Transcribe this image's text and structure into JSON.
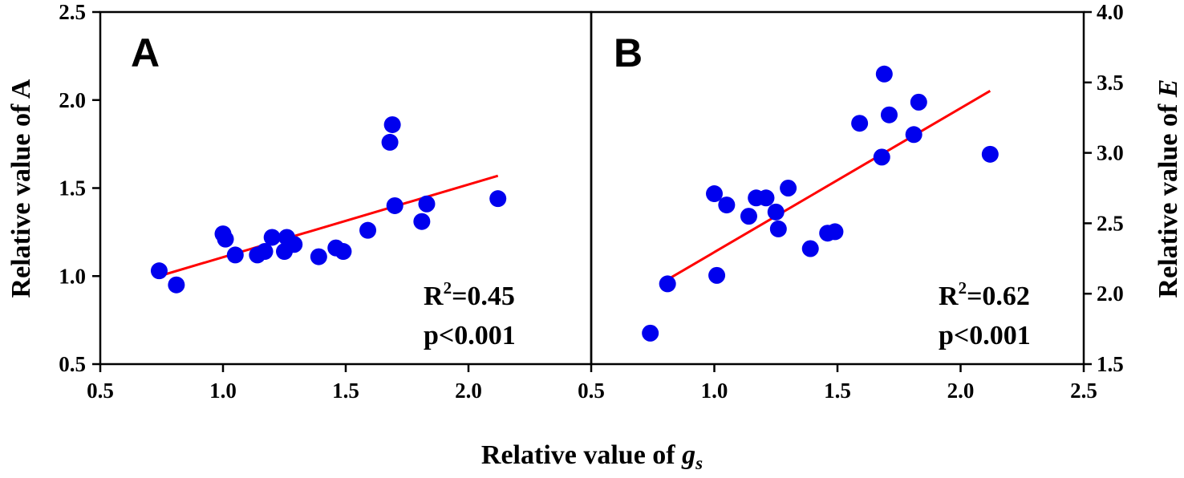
{
  "chart_data": [
    {
      "type": "scatter",
      "panel_label": "A",
      "xlim": [
        0.5,
        2.5
      ],
      "ylim": [
        0.5,
        2.5
      ],
      "x_ticks": [
        "0.5",
        "1.0",
        "1.5",
        "2.0"
      ],
      "y_ticks": [
        "0.5",
        "1.0",
        "1.5",
        "2.0",
        "2.5"
      ],
      "ylabel": "Relative value of A",
      "points": [
        [
          0.74,
          1.03
        ],
        [
          0.81,
          0.95
        ],
        [
          1.0,
          1.24
        ],
        [
          1.01,
          1.21
        ],
        [
          1.05,
          1.12
        ],
        [
          1.14,
          1.12
        ],
        [
          1.17,
          1.14
        ],
        [
          1.2,
          1.22
        ],
        [
          1.25,
          1.14
        ],
        [
          1.26,
          1.22
        ],
        [
          1.29,
          1.18
        ],
        [
          1.39,
          1.11
        ],
        [
          1.46,
          1.16
        ],
        [
          1.49,
          1.14
        ],
        [
          1.59,
          1.26
        ],
        [
          1.68,
          1.76
        ],
        [
          1.69,
          1.86
        ],
        [
          1.7,
          1.4
        ],
        [
          1.81,
          1.31
        ],
        [
          1.83,
          1.41
        ],
        [
          2.12,
          1.44
        ]
      ],
      "fit_line": {
        "x": [
          0.74,
          2.12
        ],
        "y": [
          1.0,
          1.57
        ]
      },
      "r2_label": "R",
      "r2_sup": "2",
      "r2_value": "=0.45",
      "p_text": "p<0.001",
      "color_points": "#0000ee",
      "color_line": "#ff0000"
    },
    {
      "type": "scatter",
      "panel_label": "B",
      "xlim": [
        0.5,
        2.5
      ],
      "ylim": [
        1.5,
        4.0
      ],
      "x_ticks": [
        "0.5",
        "1.0",
        "1.5",
        "2.0",
        "2.5"
      ],
      "y_ticks": [
        "1.5",
        "2.0",
        "2.5",
        "3.0",
        "3.5",
        "4.0"
      ],
      "ylabel_prefix": "Relative value of ",
      "ylabel_var": "E",
      "points": [
        [
          0.74,
          1.72
        ],
        [
          0.81,
          2.07
        ],
        [
          1.0,
          2.71
        ],
        [
          1.01,
          2.13
        ],
        [
          1.05,
          2.63
        ],
        [
          1.14,
          2.55
        ],
        [
          1.17,
          2.68
        ],
        [
          1.21,
          2.68
        ],
        [
          1.25,
          2.58
        ],
        [
          1.26,
          2.46
        ],
        [
          1.3,
          2.75
        ],
        [
          1.39,
          2.32
        ],
        [
          1.46,
          2.43
        ],
        [
          1.49,
          2.44
        ],
        [
          1.59,
          3.21
        ],
        [
          1.68,
          2.97
        ],
        [
          1.69,
          3.56
        ],
        [
          1.71,
          3.27
        ],
        [
          1.81,
          3.13
        ],
        [
          1.83,
          3.36
        ],
        [
          2.12,
          2.99
        ]
      ],
      "fit_line": {
        "x": [
          0.78,
          2.12
        ],
        "y": [
          2.07,
          3.44
        ]
      },
      "r2_label": "R",
      "r2_sup": "2",
      "r2_value": "=0.62",
      "p_text": "p<0.001",
      "color_points": "#0000ee",
      "color_line": "#ff0000"
    }
  ],
  "xlabel_prefix": "Relative value of ",
  "xlabel_var": "g",
  "xlabel_sub": "s"
}
